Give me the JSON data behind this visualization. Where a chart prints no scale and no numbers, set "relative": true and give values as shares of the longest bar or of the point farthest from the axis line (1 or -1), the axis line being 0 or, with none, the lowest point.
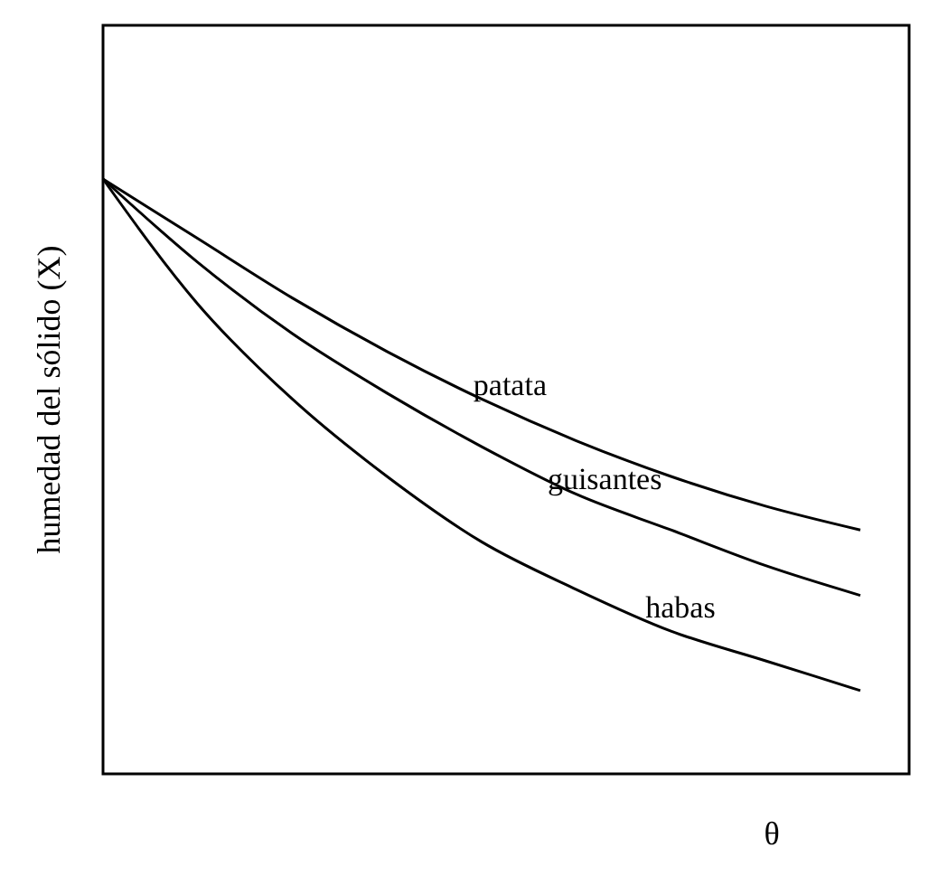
{
  "chart_data": {
    "type": "line",
    "relative": true,
    "xlabel": "θ",
    "ylabel": "humedad del sólido (X)",
    "categories": [
      null,
      null,
      null,
      null,
      null,
      null,
      null,
      null,
      null
    ],
    "marker": "none",
    "line_style": "solid",
    "series": [
      {
        "name": "patata",
        "color": "#000000",
        "values": [
          1,
          0.9,
          0.8,
          0.71,
          0.63,
          0.56,
          0.5,
          0.45,
          0.41
        ]
      },
      {
        "name": "guisantes",
        "color": "#000000",
        "values": [
          1,
          0.86,
          0.74,
          0.64,
          0.55,
          0.47,
          0.41,
          0.35,
          0.3
        ]
      },
      {
        "name": "habas",
        "color": "#000000",
        "values": [
          1,
          0.79,
          0.63,
          0.5,
          0.39,
          0.31,
          0.24,
          0.19,
          0.14
        ]
      }
    ]
  }
}
